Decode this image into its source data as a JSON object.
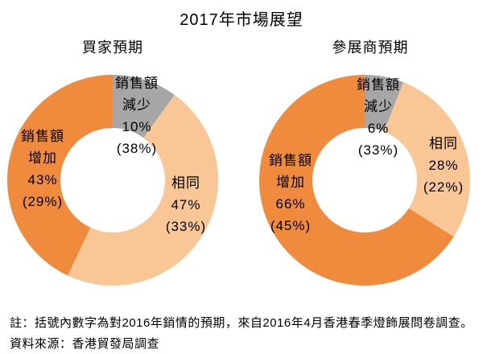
{
  "title": "2017年市場展望",
  "footnotes": {
    "note": "註：括號內數字為對2016年銷情的預期，來自2016年4月香港春季燈飾展問卷調查。",
    "source": "資料來源：香港貿發局調查"
  },
  "colors": {
    "increase": "#F08A3C",
    "same": "#F9C795",
    "decrease": "#A6A6A6",
    "text": "#000000",
    "background": "#FFFFFF"
  },
  "chart_data": [
    {
      "type": "pie",
      "donut": true,
      "title": "買家預期",
      "start_angle_deg": 0,
      "legend_position": "none",
      "segments": [
        {
          "label": "銷售額減少",
          "value_pct": 10,
          "prev_2016_pct": 38,
          "color": "#A6A6A6",
          "display": "銷售額\n減少\n10%\n(38%)"
        },
        {
          "label": "相同",
          "value_pct": 47,
          "prev_2016_pct": 33,
          "color": "#F9C795",
          "display": "相同\n47%\n(33%)"
        },
        {
          "label": "銷售額增加",
          "value_pct": 43,
          "prev_2016_pct": 29,
          "color": "#F08A3C",
          "display": "銷售額\n增加\n43%\n(29%)"
        }
      ]
    },
    {
      "type": "pie",
      "donut": true,
      "title": "參展商預期",
      "start_angle_deg": 0,
      "legend_position": "none",
      "segments": [
        {
          "label": "銷售額減少",
          "value_pct": 6,
          "prev_2016_pct": 33,
          "color": "#A6A6A6",
          "display": "銷售額\n減少\n6%\n(33%)"
        },
        {
          "label": "相同",
          "value_pct": 28,
          "prev_2016_pct": 22,
          "color": "#F9C795",
          "display": "相同\n28%\n(22%)"
        },
        {
          "label": "銷售額增加",
          "value_pct": 66,
          "prev_2016_pct": 45,
          "color": "#F08A3C",
          "display": "銷售額\n增加\n66%\n(45%)"
        }
      ]
    }
  ]
}
